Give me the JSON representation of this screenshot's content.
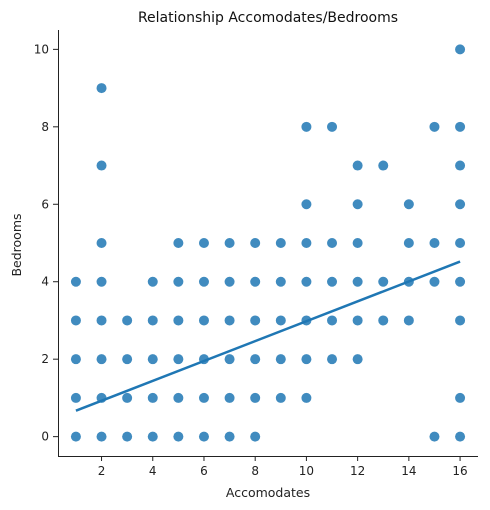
{
  "chart_data": {
    "type": "scatter",
    "title": "Relationship Accomodates/Bedrooms",
    "xlabel": "Accomodates",
    "ylabel": "Bedrooms",
    "xlim": [
      0.3,
      16.7
    ],
    "ylim": [
      -0.5,
      10.5
    ],
    "xticks": [
      2,
      4,
      6,
      8,
      10,
      12,
      14,
      16
    ],
    "yticks": [
      0,
      2,
      4,
      6,
      8,
      10
    ],
    "grid": false,
    "legend": "none",
    "point_color": "#1f77b4",
    "line_color": "#1f77b4",
    "points": [
      [
        1,
        0
      ],
      [
        1,
        1
      ],
      [
        1,
        2
      ],
      [
        1,
        3
      ],
      [
        1,
        4
      ],
      [
        2,
        0
      ],
      [
        2,
        1
      ],
      [
        2,
        2
      ],
      [
        2,
        3
      ],
      [
        2,
        4
      ],
      [
        2,
        5
      ],
      [
        2,
        7
      ],
      [
        2,
        9
      ],
      [
        3,
        0
      ],
      [
        3,
        1
      ],
      [
        3,
        2
      ],
      [
        3,
        3
      ],
      [
        4,
        0
      ],
      [
        4,
        1
      ],
      [
        4,
        2
      ],
      [
        4,
        3
      ],
      [
        4,
        4
      ],
      [
        5,
        0
      ],
      [
        5,
        1
      ],
      [
        5,
        2
      ],
      [
        5,
        3
      ],
      [
        5,
        4
      ],
      [
        5,
        5
      ],
      [
        6,
        0
      ],
      [
        6,
        1
      ],
      [
        6,
        2
      ],
      [
        6,
        3
      ],
      [
        6,
        4
      ],
      [
        6,
        5
      ],
      [
        7,
        0
      ],
      [
        7,
        1
      ],
      [
        7,
        2
      ],
      [
        7,
        3
      ],
      [
        7,
        4
      ],
      [
        7,
        5
      ],
      [
        8,
        0
      ],
      [
        8,
        1
      ],
      [
        8,
        2
      ],
      [
        8,
        3
      ],
      [
        8,
        4
      ],
      [
        8,
        5
      ],
      [
        9,
        1
      ],
      [
        9,
        2
      ],
      [
        9,
        3
      ],
      [
        9,
        4
      ],
      [
        9,
        5
      ],
      [
        10,
        1
      ],
      [
        10,
        2
      ],
      [
        10,
        3
      ],
      [
        10,
        4
      ],
      [
        10,
        5
      ],
      [
        10,
        6
      ],
      [
        10,
        8
      ],
      [
        11,
        2
      ],
      [
        11,
        3
      ],
      [
        11,
        4
      ],
      [
        11,
        5
      ],
      [
        11,
        8
      ],
      [
        12,
        2
      ],
      [
        12,
        3
      ],
      [
        12,
        4
      ],
      [
        12,
        5
      ],
      [
        12,
        6
      ],
      [
        12,
        7
      ],
      [
        13,
        3
      ],
      [
        13,
        4
      ],
      [
        13,
        7
      ],
      [
        14,
        3
      ],
      [
        14,
        4
      ],
      [
        14,
        5
      ],
      [
        14,
        6
      ],
      [
        15,
        0
      ],
      [
        15,
        4
      ],
      [
        15,
        5
      ],
      [
        15,
        8
      ],
      [
        16,
        0
      ],
      [
        16,
        1
      ],
      [
        16,
        3
      ],
      [
        16,
        4
      ],
      [
        16,
        5
      ],
      [
        16,
        6
      ],
      [
        16,
        7
      ],
      [
        16,
        8
      ],
      [
        16,
        10
      ]
    ],
    "regression_line": {
      "x": [
        1,
        16
      ],
      "y": [
        0.67,
        4.52
      ]
    }
  }
}
